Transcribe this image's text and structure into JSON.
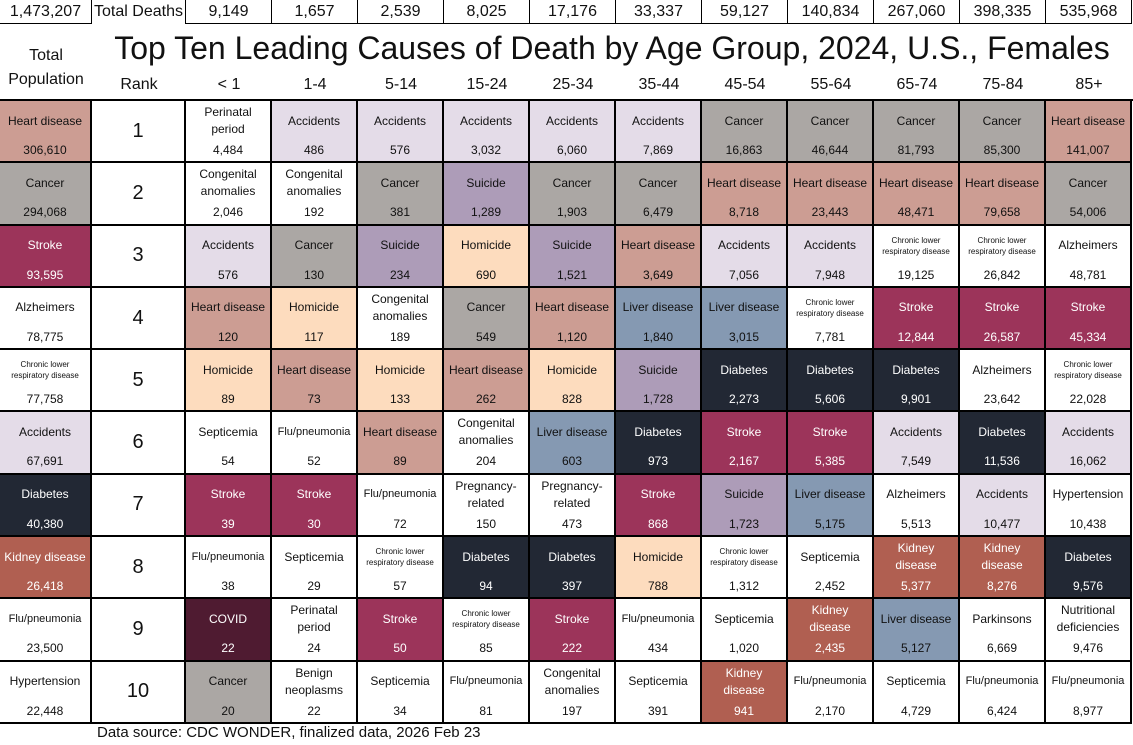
{
  "top_row": {
    "total_population": "1,473,207",
    "label": "Total Deaths",
    "age_totals": [
      "9,149",
      "1,657",
      "2,539",
      "8,025",
      "17,176",
      "33,337",
      "59,127",
      "140,834",
      "267,060",
      "398,335",
      "535,968"
    ]
  },
  "header": {
    "title": "Top Ten Leading Causes of Death by Age Group, 2024, U.S., Females",
    "total_population_label": "Total Population",
    "rank_label": "Rank",
    "age_groups": [
      "< 1",
      "1-4",
      "5-14",
      "15-24",
      "25-34",
      "35-44",
      "45-54",
      "55-64",
      "65-74",
      "75-84",
      "85+"
    ]
  },
  "footer": "Data source: CDC WONDER, finalized data, 2026 Feb 23",
  "colors": {
    "Heart disease": "#cc9d93",
    "Cancer": "#aba7a4",
    "Accidents": "#e4dce8",
    "Suicide": "#ad9cb8",
    "Stroke": "#9c345a",
    "Diabetes": "#222834",
    "Liver disease": "#8599b2",
    "Homicide": "#fddcbe",
    "Kidney disease": "#b05f51",
    "COVID": "#4f1b31"
  },
  "chart_data": {
    "type": "table",
    "title": "Top Ten Leading Causes of Death by Age Group, 2024, U.S., Females",
    "columns": [
      "Total Population",
      "< 1",
      "1-4",
      "5-14",
      "15-24",
      "25-34",
      "35-44",
      "45-54",
      "55-64",
      "65-74",
      "75-84",
      "85+"
    ],
    "rows": [
      {
        "rank": "1",
        "cells": [
          [
            "Heart disease",
            "306,610"
          ],
          [
            "Perinatal period",
            "4,484"
          ],
          [
            "Accidents",
            "486"
          ],
          [
            "Accidents",
            "576"
          ],
          [
            "Accidents",
            "3,032"
          ],
          [
            "Accidents",
            "6,060"
          ],
          [
            "Accidents",
            "7,869"
          ],
          [
            "Cancer",
            "16,863"
          ],
          [
            "Cancer",
            "46,644"
          ],
          [
            "Cancer",
            "81,793"
          ],
          [
            "Cancer",
            "85,300"
          ],
          [
            "Heart disease",
            "141,007"
          ]
        ]
      },
      {
        "rank": "2",
        "cells": [
          [
            "Cancer",
            "294,068"
          ],
          [
            "Congenital anomalies",
            "2,046"
          ],
          [
            "Congenital anomalies",
            "192"
          ],
          [
            "Cancer",
            "381"
          ],
          [
            "Suicide",
            "1,289"
          ],
          [
            "Cancer",
            "1,903"
          ],
          [
            "Cancer",
            "6,479"
          ],
          [
            "Heart disease",
            "8,718"
          ],
          [
            "Heart disease",
            "23,443"
          ],
          [
            "Heart disease",
            "48,471"
          ],
          [
            "Heart disease",
            "79,658"
          ],
          [
            "Cancer",
            "54,006"
          ]
        ]
      },
      {
        "rank": "3",
        "cells": [
          [
            "Stroke",
            "93,595"
          ],
          [
            "Accidents",
            "576"
          ],
          [
            "Cancer",
            "130"
          ],
          [
            "Suicide",
            "234"
          ],
          [
            "Homicide",
            "690"
          ],
          [
            "Suicide",
            "1,521"
          ],
          [
            "Heart disease",
            "3,649"
          ],
          [
            "Accidents",
            "7,056"
          ],
          [
            "Accidents",
            "7,948"
          ],
          [
            "Chronic lower respiratory disease",
            "19,125"
          ],
          [
            "Chronic lower respiratory disease",
            "26,842"
          ],
          [
            "Alzheimers",
            "48,781"
          ]
        ]
      },
      {
        "rank": "4",
        "cells": [
          [
            "Alzheimers",
            "78,775"
          ],
          [
            "Heart disease",
            "120"
          ],
          [
            "Homicide",
            "117"
          ],
          [
            "Congenital anomalies",
            "189"
          ],
          [
            "Cancer",
            "549"
          ],
          [
            "Heart disease",
            "1,120"
          ],
          [
            "Liver disease",
            "1,840"
          ],
          [
            "Liver disease",
            "3,015"
          ],
          [
            "Chronic lower respiratory disease",
            "7,781"
          ],
          [
            "Stroke",
            "12,844"
          ],
          [
            "Stroke",
            "26,587"
          ],
          [
            "Stroke",
            "45,334"
          ]
        ]
      },
      {
        "rank": "5",
        "cells": [
          [
            "Chronic lower respiratory disease",
            "77,758"
          ],
          [
            "Homicide",
            "89"
          ],
          [
            "Heart disease",
            "73"
          ],
          [
            "Homicide",
            "133"
          ],
          [
            "Heart disease",
            "262"
          ],
          [
            "Homicide",
            "828"
          ],
          [
            "Suicide",
            "1,728"
          ],
          [
            "Diabetes",
            "2,273"
          ],
          [
            "Diabetes",
            "5,606"
          ],
          [
            "Diabetes",
            "9,901"
          ],
          [
            "Alzheimers",
            "23,642"
          ],
          [
            "Chronic lower respiratory disease",
            "22,028"
          ]
        ]
      },
      {
        "rank": "6",
        "cells": [
          [
            "Accidents",
            "67,691"
          ],
          [
            "Septicemia",
            "54"
          ],
          [
            "Flu/pneumonia",
            "52"
          ],
          [
            "Heart disease",
            "89"
          ],
          [
            "Congenital anomalies",
            "204"
          ],
          [
            "Liver disease",
            "603"
          ],
          [
            "Diabetes",
            "973"
          ],
          [
            "Stroke",
            "2,167"
          ],
          [
            "Stroke",
            "5,385"
          ],
          [
            "Accidents",
            "7,549"
          ],
          [
            "Diabetes",
            "11,536"
          ],
          [
            "Accidents",
            "16,062"
          ]
        ]
      },
      {
        "rank": "7",
        "cells": [
          [
            "Diabetes",
            "40,380"
          ],
          [
            "Stroke",
            "39"
          ],
          [
            "Stroke",
            "30"
          ],
          [
            "Flu/pneumonia",
            "72"
          ],
          [
            "Pregnancy-related",
            "150"
          ],
          [
            "Pregnancy-related",
            "473"
          ],
          [
            "Stroke",
            "868"
          ],
          [
            "Suicide",
            "1,723"
          ],
          [
            "Liver disease",
            "5,175"
          ],
          [
            "Alzheimers",
            "5,513"
          ],
          [
            "Accidents",
            "10,477"
          ],
          [
            "Hypertension",
            "10,438"
          ]
        ]
      },
      {
        "rank": "8",
        "cells": [
          [
            "Kidney disease",
            "26,418"
          ],
          [
            "Flu/pneumonia",
            "38"
          ],
          [
            "Septicemia",
            "29"
          ],
          [
            "Chronic lower respiratory disease",
            "57"
          ],
          [
            "Diabetes",
            "94"
          ],
          [
            "Diabetes",
            "397"
          ],
          [
            "Homicide",
            "788"
          ],
          [
            "Chronic lower respiratory disease",
            "1,312"
          ],
          [
            "Septicemia",
            "2,452"
          ],
          [
            "Kidney disease",
            "5,377"
          ],
          [
            "Kidney disease",
            "8,276"
          ],
          [
            "Diabetes",
            "9,576"
          ]
        ]
      },
      {
        "rank": "9",
        "cells": [
          [
            "Flu/pneumonia",
            "23,500"
          ],
          [
            "COVID",
            "22"
          ],
          [
            "Perinatal period",
            "24"
          ],
          [
            "Stroke",
            "50"
          ],
          [
            "Chronic lower respiratory disease",
            "85"
          ],
          [
            "Stroke",
            "222"
          ],
          [
            "Flu/pneumonia",
            "434"
          ],
          [
            "Septicemia",
            "1,020"
          ],
          [
            "Kidney disease",
            "2,435"
          ],
          [
            "Liver disease",
            "5,127"
          ],
          [
            "Parkinsons",
            "6,669"
          ],
          [
            "Nutritional deficiencies",
            "9,476"
          ]
        ]
      },
      {
        "rank": "10",
        "cells": [
          [
            "Hypertension",
            "22,448"
          ],
          [
            "Cancer",
            "20"
          ],
          [
            "Benign neoplasms",
            "22"
          ],
          [
            "Septicemia",
            "34"
          ],
          [
            "Flu/pneumonia",
            "81"
          ],
          [
            "Congenital anomalies",
            "197"
          ],
          [
            "Septicemia",
            "391"
          ],
          [
            "Kidney disease",
            "941"
          ],
          [
            "Flu/pneumonia",
            "2,170"
          ],
          [
            "Septicemia",
            "4,729"
          ],
          [
            "Flu/pneumonia",
            "6,424"
          ],
          [
            "Flu/pneumonia",
            "8,977"
          ]
        ]
      }
    ]
  }
}
